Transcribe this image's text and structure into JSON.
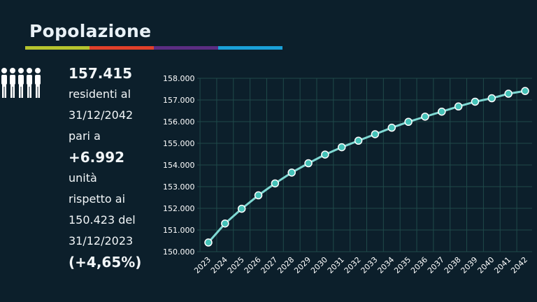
{
  "header": {
    "title": "Popolazione",
    "accent_colors": [
      "#b5c42e",
      "#e0402a",
      "#5b2d82",
      "#1aa0d8"
    ]
  },
  "stats": {
    "value": "157.415",
    "line1": "residenti al",
    "line2": "31/12/2042",
    "line3": "pari a",
    "delta": "+6.992",
    "line4": "unità",
    "line5": "rispetto ai",
    "line6": "150.423 del",
    "line7": "31/12/2023",
    "percent": "(+4,65%)"
  },
  "chart_data": {
    "type": "line",
    "x": [
      "2023",
      "2024",
      "2025",
      "2026",
      "2027",
      "2028",
      "2029",
      "2030",
      "2031",
      "2032",
      "2033",
      "2034",
      "2035",
      "2036",
      "2037",
      "2038",
      "2039",
      "2040",
      "2041",
      "2042"
    ],
    "values": [
      150423,
      151300,
      151980,
      152600,
      153150,
      153650,
      154080,
      154480,
      154820,
      155120,
      155420,
      155720,
      155990,
      156230,
      156460,
      156700,
      156920,
      157080,
      157290,
      157415
    ],
    "y_ticks": [
      "150.000",
      "151.000",
      "152.000",
      "153.000",
      "154.000",
      "155.000",
      "156.000",
      "157.000",
      "158.000"
    ],
    "ylim": [
      150000,
      158000
    ],
    "grid": true,
    "line_color": "#7fd9d3",
    "marker_color": "#45c2b8"
  }
}
